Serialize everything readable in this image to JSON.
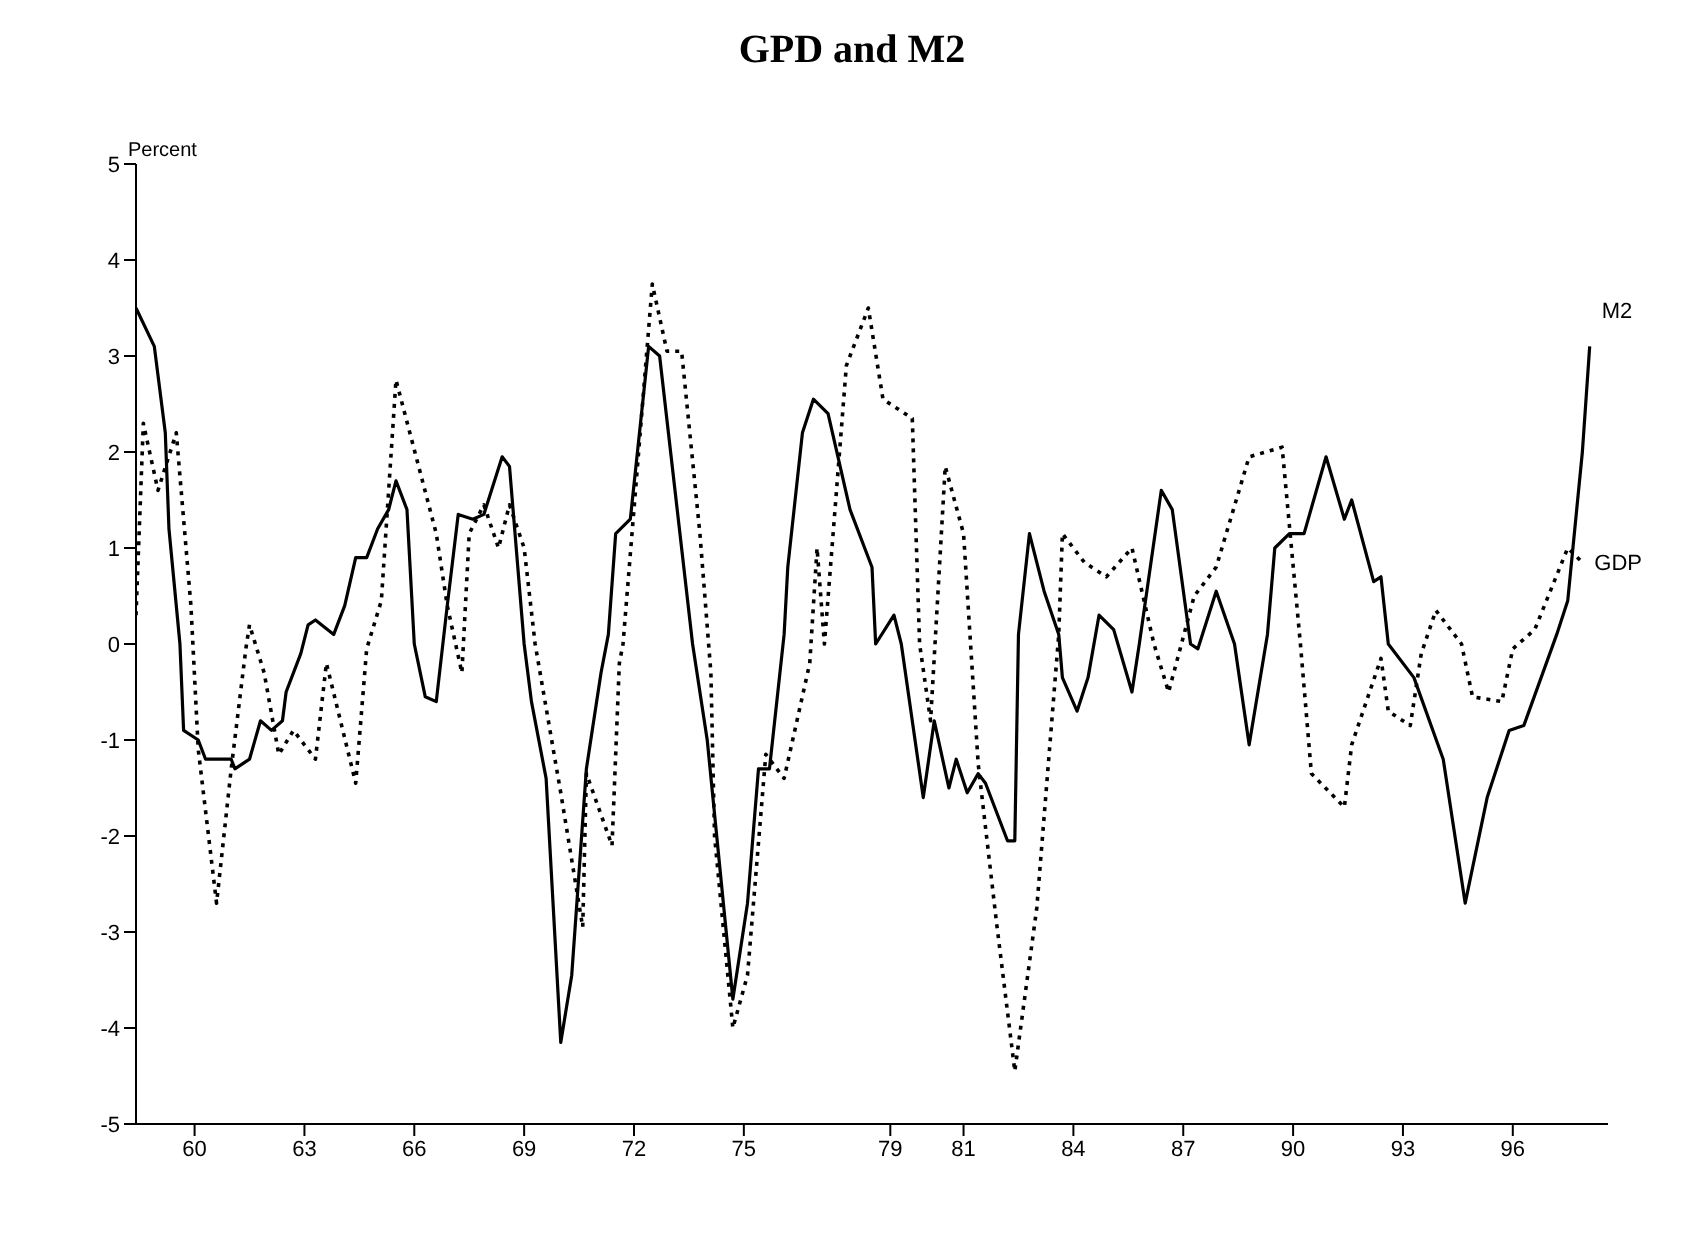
{
  "chart_data": {
    "type": "line",
    "title": "GPD and M2",
    "ylabel": "Percent",
    "xlim": [
      1958.4,
      1998.6
    ],
    "xticks": [
      {
        "value": 1960,
        "label": "60"
      },
      {
        "value": 1963,
        "label": "63"
      },
      {
        "value": 1966,
        "label": "66"
      },
      {
        "value": 1969,
        "label": "69"
      },
      {
        "value": 1972,
        "label": "72"
      },
      {
        "value": 1975,
        "label": "75"
      },
      {
        "value": 1979,
        "label": "79"
      },
      {
        "value": 1981,
        "label": "81"
      },
      {
        "value": 1984,
        "label": "84"
      },
      {
        "value": 1987,
        "label": "87"
      },
      {
        "value": 1990,
        "label": "90"
      },
      {
        "value": 1993,
        "label": "93"
      },
      {
        "value": 1996,
        "label": "96"
      }
    ],
    "ylim": [
      -5,
      5
    ],
    "yticks": [
      -5,
      -4,
      -3,
      -2,
      -1,
      0,
      1,
      2,
      3,
      4,
      5
    ],
    "marker": "none",
    "series": [
      {
        "name": "M2",
        "color": "#000000",
        "line_style": "solid",
        "x": [
          1958.4,
          1958.9,
          1959.2,
          1959.3,
          1959.6,
          1959.7,
          1960.1,
          1960.3,
          1961,
          1961.1,
          1961.5,
          1961.8,
          1962.1,
          1962.4,
          1962.5,
          1962.9,
          1963.1,
          1963.3,
          1963.8,
          1964.1,
          1964.4,
          1964.7,
          1965,
          1965.3,
          1965.5,
          1965.8,
          1966,
          1966.3,
          1966.6,
          1966.9,
          1967.2,
          1967.6,
          1967.9,
          1968.4,
          1968.6,
          1969,
          1969.2,
          1969.6,
          1970,
          1970.3,
          1970.7,
          1971.1,
          1971.3,
          1971.5,
          1971.9,
          1972.4,
          1972.7,
          1973.6,
          1974,
          1974.7,
          1975.1,
          1975.4,
          1975.7,
          1976.1,
          1976.2,
          1976.6,
          1976.9,
          1977.3,
          1977.9,
          1978.5,
          1978.6,
          1979.1,
          1979.3,
          1979.9,
          1980.2,
          1980.6,
          1980.8,
          1981.1,
          1981.4,
          1981.6,
          1982.2,
          1982.4,
          1982.5,
          1982.8,
          1983.2,
          1983.6,
          1983.7,
          1984.1,
          1984.4,
          1984.7,
          1985.1,
          1985.6,
          1985.8,
          1986.4,
          1986.7,
          1987.2,
          1987.4,
          1987.9,
          1988.4,
          1988.8,
          1989.3,
          1989.5,
          1989.9,
          1990.3,
          1990.9,
          1991.4,
          1991.6,
          1992.2,
          1992.4,
          1992.6,
          1993.3,
          1994.1,
          1994.7,
          1995.3,
          1995.9,
          1996.3,
          1997.2,
          1997.5,
          1997.9,
          1998.1
        ],
        "values": [
          3.5,
          3.1,
          2.2,
          1.2,
          0,
          -0.9,
          -1,
          -1.2,
          -1.2,
          -1.3,
          -1.2,
          -0.8,
          -0.9,
          -0.8,
          -0.5,
          -0.1,
          0.2,
          0.25,
          0.1,
          0.4,
          0.9,
          0.9,
          1.2,
          1.4,
          1.7,
          1.4,
          0,
          -0.55,
          -0.6,
          0.4,
          1.35,
          1.3,
          1.35,
          1.95,
          1.85,
          0,
          -0.6,
          -1.4,
          -4.15,
          -3.45,
          -1.3,
          -0.3,
          0.1,
          1.15,
          1.3,
          3.1,
          3,
          0,
          -1,
          -3.7,
          -2.7,
          -1.3,
          -1.3,
          0.1,
          0.8,
          2.2,
          2.55,
          2.4,
          1.4,
          0.8,
          0,
          0.3,
          0,
          -1.6,
          -0.8,
          -1.5,
          -1.2,
          -1.55,
          -1.35,
          -1.45,
          -2.05,
          -2.05,
          0.1,
          1.15,
          0.55,
          0.1,
          -0.35,
          -0.7,
          -0.35,
          0.3,
          0.15,
          -0.5,
          0,
          1.6,
          1.4,
          0,
          -0.05,
          0.55,
          0,
          -1.05,
          0.1,
          1,
          1.15,
          1.15,
          1.95,
          1.3,
          1.5,
          0.65,
          0.7,
          0,
          -0.35,
          -1.2,
          -2.7,
          -1.6,
          -0.9,
          -0.85,
          0.1,
          0.45,
          2,
          3.1
        ]
      },
      {
        "name": "GDP",
        "color": "#000000",
        "line_style": "dotted",
        "x": [
          1958.4,
          1958.6,
          1959,
          1959.5,
          1959.9,
          1960.1,
          1960.6,
          1961,
          1961.4,
          1961.5,
          1961.9,
          1962.3,
          1962.7,
          1963.3,
          1963.6,
          1964.4,
          1964.7,
          1965.1,
          1965.5,
          1966.6,
          1966.9,
          1967.3,
          1967.5,
          1967.9,
          1968.3,
          1968.6,
          1969,
          1969.3,
          1970,
          1970.6,
          1970.7,
          1971.4,
          1971.6,
          1971.7,
          1972.5,
          1972.9,
          1973.3,
          1973.8,
          1974.1,
          1974.2,
          1974.7,
          1975.1,
          1975.6,
          1976.1,
          1976.8,
          1977,
          1977.2,
          1977.8,
          1978.4,
          1978.8,
          1979.6,
          1979.8,
          1980.1,
          1980.5,
          1981,
          1981.4,
          1981.9,
          1982.4,
          1983,
          1983.6,
          1983.7,
          1984.3,
          1984.9,
          1985.6,
          1986.2,
          1986.6,
          1987.3,
          1987.9,
          1988.8,
          1989.7,
          1990.2,
          1990.5,
          1991.4,
          1991.6,
          1992.4,
          1992.6,
          1993.2,
          1993.5,
          1993.9,
          1994.6,
          1994.9,
          1995.7,
          1996,
          1996.6,
          1997.5,
          1997.9
        ],
        "values": [
          0.3,
          2.3,
          1.6,
          2.2,
          0.4,
          -1.1,
          -2.7,
          -1.3,
          -0.05,
          0.2,
          -0.3,
          -1.15,
          -0.9,
          -1.2,
          -0.2,
          -1.45,
          -0.05,
          0.45,
          2.75,
          1.15,
          0.4,
          -0.3,
          1.15,
          1.45,
          1,
          1.45,
          1,
          0,
          -1.55,
          -2.95,
          -1.35,
          -2.1,
          -0.2,
          0,
          3.75,
          3.05,
          3.05,
          1.15,
          -0.3,
          -2,
          -4,
          -3.45,
          -1.15,
          -1.4,
          -0.2,
          1,
          0,
          2.9,
          3.5,
          2.55,
          2.35,
          0,
          -0.8,
          1.85,
          1.15,
          -1.25,
          -2.9,
          -4.45,
          -2.75,
          0.1,
          1.15,
          0.85,
          0.7,
          1,
          0,
          -0.5,
          0.5,
          0.8,
          1.95,
          2.05,
          0,
          -1.35,
          -1.7,
          -1.05,
          -0.15,
          -0.7,
          -0.85,
          -0.1,
          0.35,
          0,
          -0.55,
          -0.6,
          -0.05,
          0.15,
          1,
          0.85
        ]
      }
    ]
  }
}
